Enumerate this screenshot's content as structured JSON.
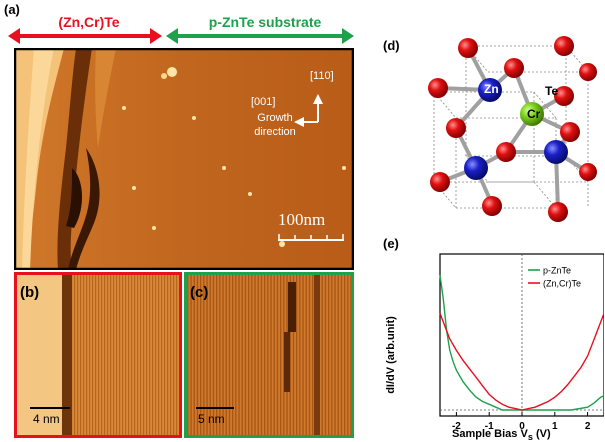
{
  "figure": {
    "panel_a": {
      "label": "(a)",
      "left_region": "(Zn,Cr)Te",
      "right_region": "p-ZnTe substrate",
      "dir_top": "[110]",
      "dir_left": "[001]",
      "growth_line1": "Growth",
      "growth_line2": "direction",
      "scalebar": "100nm",
      "colors": {
        "red": "#e8101e",
        "green": "#1fa04a",
        "afm": "#c0661e"
      }
    },
    "panel_b": {
      "label": "(b)",
      "scalebar": "4 nm"
    },
    "panel_c": {
      "label": "(c)",
      "scalebar": "5 nm"
    },
    "panel_d": {
      "label": "(d)",
      "atoms": {
        "zn": "Zn",
        "te": "Te",
        "cr": "Cr"
      },
      "colors": {
        "zn": "#1a20c8",
        "te": "#e01010",
        "cr": "#7ed321"
      }
    },
    "panel_e": {
      "label": "(e)",
      "ylabel": "dI/dV (arb.unit)",
      "xlabel": "Sample Bias V",
      "xlabel_sub": "s",
      "xlabel_unit": " (V)"
    }
  },
  "chart_data": {
    "type": "line",
    "xlim": [
      -2.5,
      2.5
    ],
    "ylim": [
      0,
      1
    ],
    "xticks": [
      -2,
      -1,
      0,
      1,
      2
    ],
    "xticklabels": [
      "-2",
      "-1",
      "0",
      "1",
      "2"
    ],
    "series": [
      {
        "name": "p-ZnTe",
        "color": "#1fa04a",
        "x": [
          -2.5,
          -2.4,
          -2.3,
          -2.2,
          -2.1,
          -2.0,
          -1.8,
          -1.6,
          -1.4,
          -1.2,
          -1.0,
          -0.8,
          -0.6,
          -0.4,
          -0.2,
          0.0,
          0.5,
          1.0,
          1.5,
          2.0,
          2.2,
          2.4,
          2.5
        ],
        "y": [
          0.95,
          0.78,
          0.56,
          0.42,
          0.34,
          0.28,
          0.2,
          0.14,
          0.09,
          0.06,
          0.04,
          0.02,
          0.0,
          0.0,
          0.0,
          0.0,
          0.0,
          0.0,
          0.0,
          0.02,
          0.05,
          0.09,
          0.1
        ]
      },
      {
        "name": "(Zn,Cr)Te",
        "color": "#e8101e",
        "x": [
          -2.5,
          -2.2,
          -2.0,
          -1.8,
          -1.6,
          -1.4,
          -1.2,
          -1.0,
          -0.8,
          -0.6,
          -0.4,
          -0.2,
          0.0,
          0.2,
          0.4,
          0.6,
          0.8,
          1.0,
          1.2,
          1.4,
          1.6,
          1.8,
          2.0,
          2.2,
          2.4,
          2.5
        ],
        "y": [
          0.68,
          0.5,
          0.42,
          0.35,
          0.29,
          0.23,
          0.17,
          0.11,
          0.07,
          0.04,
          0.02,
          0.01,
          0.0,
          0.01,
          0.02,
          0.04,
          0.06,
          0.09,
          0.13,
          0.18,
          0.24,
          0.3,
          0.38,
          0.5,
          0.62,
          0.68
        ]
      }
    ]
  }
}
